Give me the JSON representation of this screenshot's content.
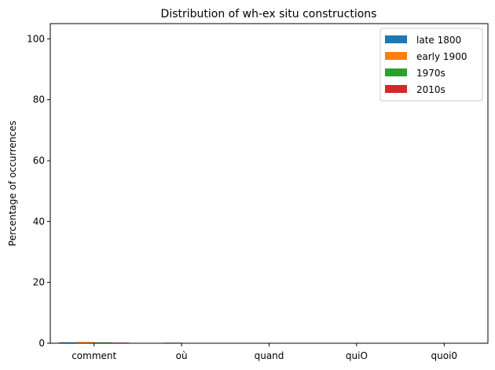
{
  "chart_data": {
    "type": "bar",
    "title": "Distribution of wh-ex situ constructions",
    "xlabel": "",
    "ylabel": "Percentage of occurrences",
    "categories": [
      "comment",
      "où",
      "quand",
      "quiO",
      "quoi0"
    ],
    "series": [
      {
        "name": "late 1800",
        "color": "#1f77b4",
        "values": [
          0.3,
          0.1,
          0.0,
          0.0,
          0.0
        ]
      },
      {
        "name": "early 1900",
        "color": "#ff7f0e",
        "values": [
          0.4,
          0.2,
          0.05,
          0.0,
          0.0
        ]
      },
      {
        "name": "1970s",
        "color": "#2ca02c",
        "values": [
          0.3,
          0.1,
          0.05,
          0.0,
          0.0
        ]
      },
      {
        "name": "2010s",
        "color": "#d62728",
        "values": [
          0.2,
          0.1,
          0.05,
          0.0,
          0.0
        ]
      }
    ],
    "ylim": [
      0,
      105
    ],
    "yticks": [
      0,
      20,
      40,
      60,
      80,
      100
    ],
    "grid": false,
    "legend_position": "top-right"
  }
}
